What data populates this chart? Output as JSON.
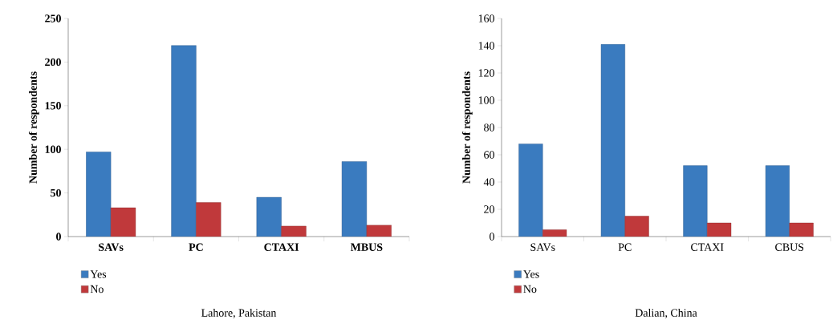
{
  "chart_data": [
    {
      "type": "bar",
      "title": "Lahore, Pakistan",
      "ylabel": "Number of respondents",
      "categories": [
        "SAVs",
        "PC",
        "CTAXI",
        "MBUS"
      ],
      "series": [
        {
          "name": "Yes",
          "color": "#3a7bbf",
          "values": [
            97,
            219,
            45,
            86
          ]
        },
        {
          "name": "No",
          "color": "#c0393b",
          "values": [
            33,
            39,
            12,
            13
          ]
        }
      ],
      "ylim": [
        0,
        250
      ],
      "yticks": [
        0,
        50,
        100,
        150,
        200,
        250
      ],
      "legend": "bottom left"
    },
    {
      "type": "bar",
      "title": "Dalian, China",
      "ylabel": "Number of respondents",
      "categories": [
        "SAVs",
        "PC",
        "CTAXI",
        "CBUS"
      ],
      "series": [
        {
          "name": "Yes",
          "color": "#3a7bbf",
          "values": [
            68,
            141,
            52,
            52
          ]
        },
        {
          "name": "No",
          "color": "#c0393b",
          "values": [
            5,
            15,
            10,
            10
          ]
        }
      ],
      "ylim": [
        0,
        160
      ],
      "yticks": [
        0,
        20,
        40,
        60,
        80,
        100,
        120,
        140,
        160
      ],
      "legend": "bottom left"
    }
  ]
}
